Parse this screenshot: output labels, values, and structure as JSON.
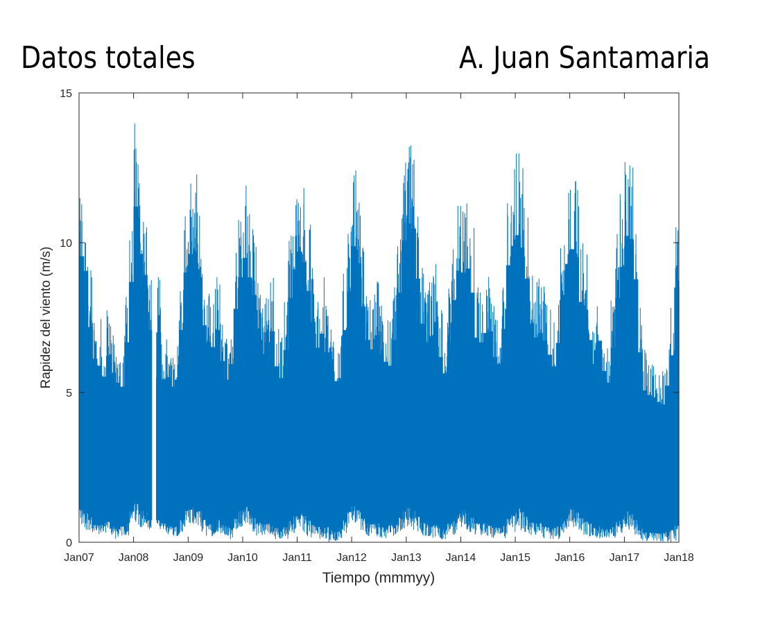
{
  "header": {
    "title_left": "Datos totales",
    "title_right": "A. Juan Santamaria"
  },
  "chart_data": {
    "type": "line",
    "xlabel": "Tiempo (mmmyy)",
    "ylabel": "Rapidez del viento (m/s)",
    "ylim": [
      0,
      15
    ],
    "xlim": [
      "2007-01-01",
      "2018-01-01"
    ],
    "x_ticks": [
      "Jan07",
      "Jan08",
      "Jan09",
      "Jan10",
      "Jan11",
      "Jan12",
      "Jan13",
      "Jan14",
      "Jan15",
      "Jan16",
      "Jan17",
      "Jan18"
    ],
    "y_ticks": [
      0,
      5,
      10,
      15
    ],
    "color": "#0072BD",
    "series": [
      {
        "period": "monthly",
        "x": [
          "2007-01",
          "2007-02",
          "2007-03",
          "2007-04",
          "2007-05",
          "2007-06",
          "2007-07",
          "2007-08",
          "2007-09",
          "2007-10",
          "2007-11",
          "2007-12",
          "2008-01",
          "2008-02",
          "2008-03",
          "2008-04",
          "2008-05",
          "2008-06",
          "2008-07",
          "2008-08",
          "2008-09",
          "2008-10",
          "2008-11",
          "2008-12",
          "2009-01",
          "2009-02",
          "2009-03",
          "2009-04",
          "2009-05",
          "2009-06",
          "2009-07",
          "2009-08",
          "2009-09",
          "2009-10",
          "2009-11",
          "2009-12",
          "2010-01",
          "2010-02",
          "2010-03",
          "2010-04",
          "2010-05",
          "2010-06",
          "2010-07",
          "2010-08",
          "2010-09",
          "2010-10",
          "2010-11",
          "2010-12",
          "2011-01",
          "2011-02",
          "2011-03",
          "2011-04",
          "2011-05",
          "2011-06",
          "2011-07",
          "2011-08",
          "2011-09",
          "2011-10",
          "2011-11",
          "2011-12",
          "2012-01",
          "2012-02",
          "2012-03",
          "2012-04",
          "2012-05",
          "2012-06",
          "2012-07",
          "2012-08",
          "2012-09",
          "2012-10",
          "2012-11",
          "2012-12",
          "2013-01",
          "2013-02",
          "2013-03",
          "2013-04",
          "2013-05",
          "2013-06",
          "2013-07",
          "2013-08",
          "2013-09",
          "2013-10",
          "2013-11",
          "2013-12",
          "2014-01",
          "2014-02",
          "2014-03",
          "2014-04",
          "2014-05",
          "2014-06",
          "2014-07",
          "2014-08",
          "2014-09",
          "2014-10",
          "2014-11",
          "2014-12",
          "2015-01",
          "2015-02",
          "2015-03",
          "2015-04",
          "2015-05",
          "2015-06",
          "2015-07",
          "2015-08",
          "2015-09",
          "2015-10",
          "2015-11",
          "2015-12",
          "2016-01",
          "2016-02",
          "2016-03",
          "2016-04",
          "2016-05",
          "2016-06",
          "2016-07",
          "2016-08",
          "2016-09",
          "2016-10",
          "2016-11",
          "2016-12",
          "2017-01",
          "2017-02",
          "2017-03",
          "2017-04",
          "2017-05",
          "2017-06",
          "2017-07",
          "2017-08",
          "2017-09",
          "2017-10",
          "2017-11",
          "2017-12"
        ],
        "max": [
          12.1,
          11.5,
          9.1,
          7.8,
          7.5,
          7.0,
          7.9,
          7.2,
          6.8,
          6.6,
          8.5,
          11.0,
          14.2,
          12.2,
          11.3,
          9.0,
          null,
          8.9,
          6.9,
          7.0,
          6.6,
          6.9,
          9.0,
          11.4,
          12.2,
          12.3,
          11.2,
          9.2,
          8.5,
          8.3,
          9.0,
          7.7,
          6.9,
          7.6,
          9.9,
          11.2,
          12.0,
          11.2,
          10.5,
          9.1,
          8.0,
          8.5,
          9.0,
          7.5,
          7.0,
          8.2,
          10.4,
          11.6,
          12.3,
          11.9,
          10.7,
          9.4,
          8.3,
          8.9,
          8.1,
          7.7,
          6.9,
          7.0,
          9.0,
          10.6,
          12.5,
          11.8,
          10.0,
          8.6,
          8.2,
          8.8,
          8.0,
          7.7,
          7.5,
          8.6,
          10.6,
          12.8,
          13.5,
          13.3,
          11.2,
          9.3,
          8.5,
          8.8,
          9.4,
          7.9,
          7.2,
          8.5,
          10.3,
          11.5,
          11.4,
          11.6,
          10.6,
          8.7,
          8.5,
          8.9,
          9.0,
          7.9,
          7.6,
          9.1,
          11.8,
          12.6,
          13.0,
          12.5,
          11.2,
          9.3,
          8.7,
          8.9,
          8.6,
          8.0,
          7.5,
          8.5,
          10.5,
          11.8,
          12.4,
          12.1,
          10.2,
          9.9,
          8.6,
          7.6,
          8.6,
          7.3,
          6.8,
          8.3,
          10.4,
          11.7,
          13.0,
          12.9,
          11.2,
          8.1,
          6.5,
          6.3,
          6.2,
          6.0,
          5.9,
          6.7,
          8.0,
          10.9
        ],
        "min": [
          0.5,
          0.4,
          0.4,
          0.2,
          0.2,
          0.3,
          0.3,
          0.2,
          0.1,
          0.2,
          0.2,
          0.5,
          0.6,
          0.5,
          0.5,
          0.3,
          null,
          0.3,
          0.3,
          0.2,
          0.2,
          0.2,
          0.3,
          0.5,
          0.5,
          0.6,
          0.5,
          0.3,
          0.2,
          0.2,
          0.3,
          0.2,
          0.2,
          0.1,
          0.3,
          0.5,
          0.6,
          0.5,
          0.3,
          0.2,
          0.2,
          0.2,
          0.1,
          0.1,
          0.1,
          0.1,
          0.2,
          0.3,
          0.5,
          0.3,
          0.2,
          0.1,
          0.1,
          0.1,
          0.1,
          0.0,
          0.0,
          0.1,
          0.3,
          0.5,
          0.6,
          0.5,
          0.3,
          0.2,
          0.2,
          0.2,
          0.1,
          0.1,
          0.2,
          0.2,
          0.3,
          0.4,
          0.5,
          0.4,
          0.3,
          0.2,
          0.2,
          0.1,
          0.1,
          0.1,
          0.1,
          0.2,
          0.2,
          0.4,
          0.5,
          0.4,
          0.3,
          0.2,
          0.2,
          0.2,
          0.1,
          0.1,
          0.1,
          0.1,
          0.2,
          0.3,
          0.5,
          0.4,
          0.3,
          0.2,
          0.2,
          0.2,
          0.1,
          0.1,
          0.1,
          0.1,
          0.3,
          0.4,
          0.5,
          0.4,
          0.3,
          0.2,
          0.2,
          0.1,
          0.1,
          0.1,
          0.1,
          0.1,
          0.2,
          0.3,
          0.4,
          0.3,
          0.2,
          0.1,
          0.0,
          0.0,
          0.0,
          0.0,
          0.0,
          0.0,
          0.0,
          0.0
        ]
      }
    ]
  }
}
